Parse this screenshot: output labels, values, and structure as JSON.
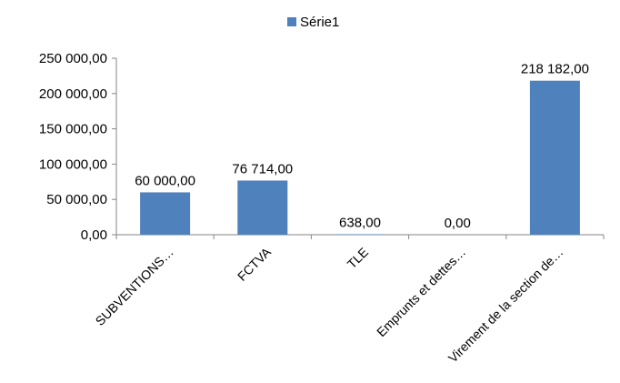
{
  "chart_data": {
    "type": "bar",
    "categories": [
      "SUBVENTIONS…",
      "FCTVA",
      "TLE",
      "Emprunts et dettes…",
      "Virement de la section de…"
    ],
    "series": [
      {
        "name": "Série1",
        "values": [
          60000,
          76714,
          638,
          0,
          218182
        ],
        "color": "#4f81bd"
      }
    ],
    "data_labels": [
      "60 000,00",
      "76 714,00",
      "638,00",
      "0,00",
      "218 182,00"
    ],
    "ylim": [
      0,
      250000
    ],
    "yticks": [
      0,
      50000,
      100000,
      150000,
      200000,
      250000
    ],
    "ytick_labels": [
      "0,00",
      "50 000,00",
      "100 000,00",
      "150 000,00",
      "200 000,00",
      "250 000,00"
    ],
    "grid": false,
    "legend_position": "top"
  }
}
